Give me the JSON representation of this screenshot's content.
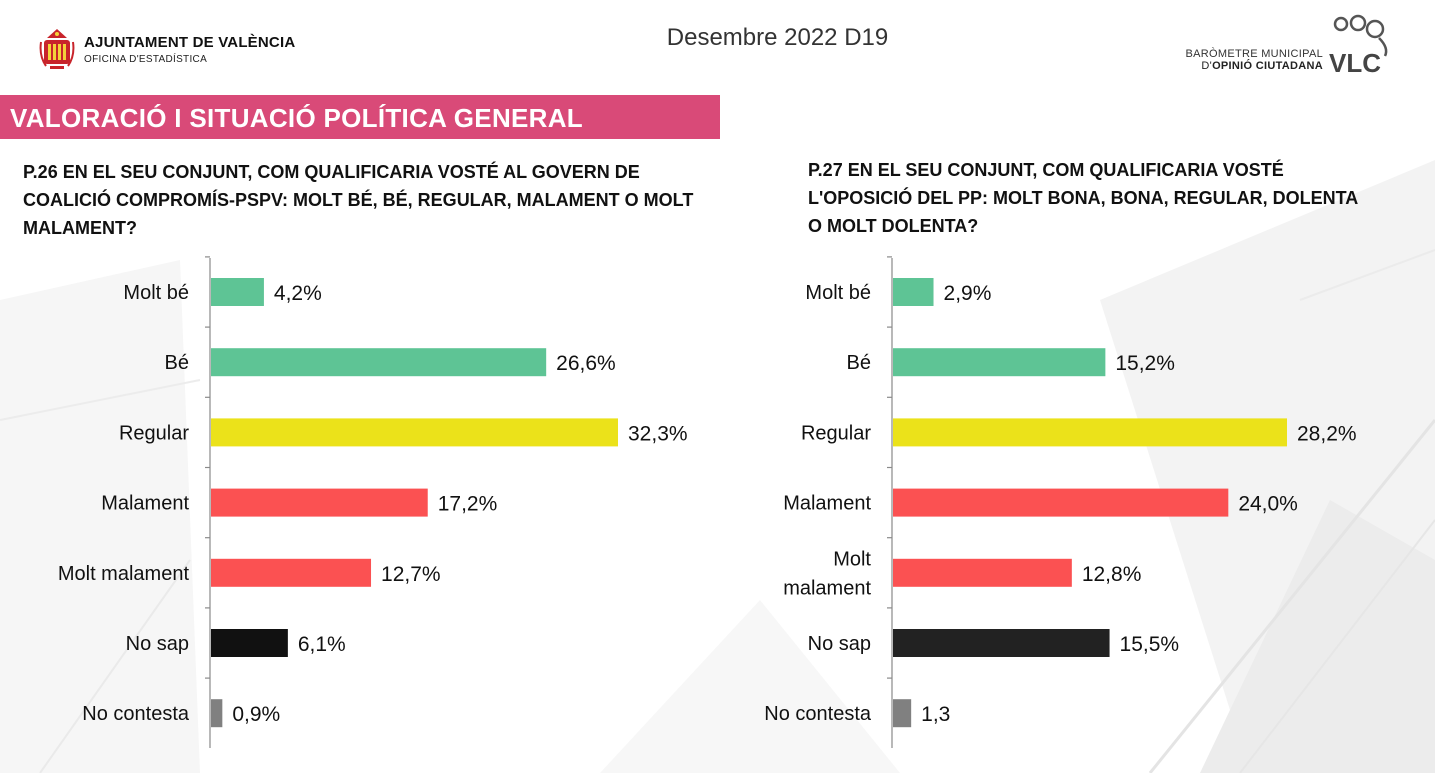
{
  "header": {
    "org_name": "AJUNTAMENT DE VALÈNCIA",
    "org_sub": "OFICINA D'ESTADÍSTICA",
    "period": "Desembre 2022 D19",
    "barometer_line1": "BARÒMETRE MUNICIPAL",
    "barometer_line2_a": "D'",
    "barometer_line2_b": "OPINIÓ CIUTADANA",
    "logo_text": "VLC"
  },
  "section": {
    "title": "VALORACIÓ I SITUACIÓ POLÍTICA GENERAL"
  },
  "colors": {
    "section_banner": "#d94a78",
    "positive": "#5ec495",
    "neutral": "#ebe21a",
    "negative": "#fb5152",
    "no_sap_left": "#111111",
    "no_sap_right": "#222222",
    "no_contesta": "#808080"
  },
  "chart_data": [
    {
      "type": "bar",
      "orientation": "horizontal",
      "title": "P.26 EN EL SEU CONJUNT, COM QUALIFICARIA VOSTÉ AL GOVERN DE COALICIÓ COMPROMÍS-PSPV: MOLT BÉ, BÉ, REGULAR, MALAMENT O MOLT MALAMENT?",
      "categories": [
        "Molt bé",
        "Bé",
        "Regular",
        "Malament",
        "Molt malament",
        "No sap",
        "No contesta"
      ],
      "values": [
        4.2,
        26.6,
        32.3,
        17.2,
        12.7,
        6.1,
        0.9
      ],
      "value_labels": [
        "4,2%",
        "26,6%",
        "32,3%",
        "17,2%",
        "12,7%",
        "6,1%",
        "0,9%"
      ],
      "bar_colors": [
        "#5ec495",
        "#5ec495",
        "#ebe21a",
        "#fb5152",
        "#fb5152",
        "#111111",
        "#808080"
      ],
      "xlim": [
        0,
        32.3
      ],
      "legend": "none",
      "grid": false
    },
    {
      "type": "bar",
      "orientation": "horizontal",
      "title": "P.27 EN EL SEU CONJUNT, COM QUALIFICARIA VOSTÉ L'OPOSICIÓ DEL PP: MOLT BONA, BONA, REGULAR, DOLENTA O MOLT DOLENTA?",
      "categories": [
        "Molt bé",
        "Bé",
        "Regular",
        "Malament",
        "Molt malament",
        "No sap",
        "No contesta"
      ],
      "category_lines": [
        [
          "Molt bé"
        ],
        [
          "Bé"
        ],
        [
          "Regular"
        ],
        [
          "Malament"
        ],
        [
          "Molt",
          "malament"
        ],
        [
          "No sap"
        ],
        [
          "No contesta"
        ]
      ],
      "values": [
        2.9,
        15.2,
        28.2,
        24.0,
        12.8,
        15.5,
        1.3
      ],
      "value_labels": [
        "2,9%",
        "15,2%",
        "28,2%",
        "24,0%",
        "12,8%",
        "15,5%",
        "1,3"
      ],
      "bar_colors": [
        "#5ec495",
        "#5ec495",
        "#ebe21a",
        "#fb5152",
        "#fb5152",
        "#222222",
        "#808080"
      ],
      "xlim": [
        0,
        28.2
      ],
      "legend": "none",
      "grid": false
    }
  ]
}
